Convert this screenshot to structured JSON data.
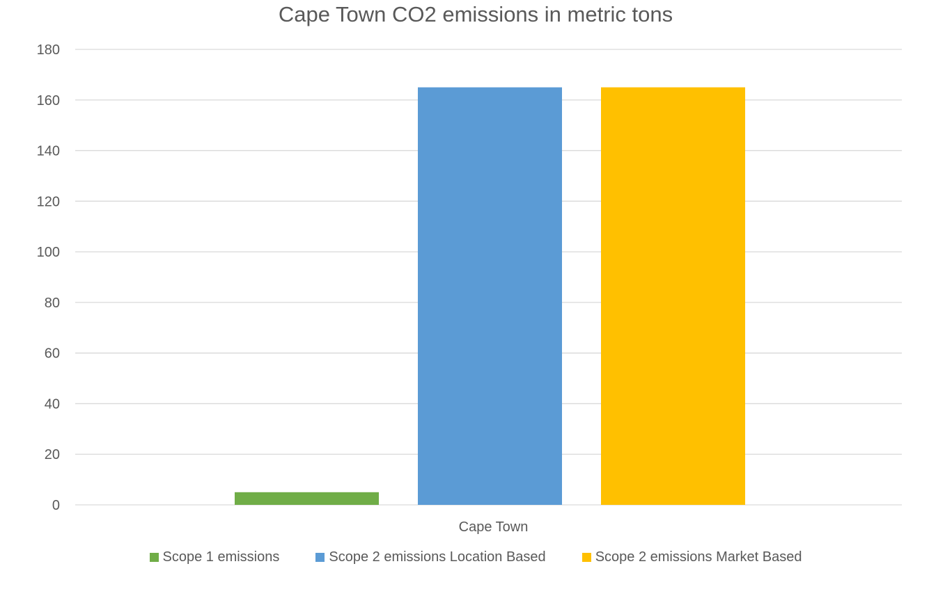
{
  "chart_data": {
    "type": "bar",
    "title": "Cape Town CO2 emissions in metric tons",
    "categories": [
      "Cape Town"
    ],
    "series": [
      {
        "name": "Scope 1 emissions",
        "values": [
          5
        ],
        "color": "#70AD47"
      },
      {
        "name": "Scope 2 emissions Location Based",
        "values": [
          165
        ],
        "color": "#5B9BD5"
      },
      {
        "name": "Scope 2 emissions Market Based",
        "values": [
          165
        ],
        "color": "#FFC000"
      }
    ],
    "xlabel": "",
    "ylabel": "",
    "ylim": [
      0,
      180
    ],
    "yticks": [
      0,
      20,
      40,
      60,
      80,
      100,
      120,
      140,
      160,
      180
    ],
    "grid": true,
    "legend_position": "bottom"
  }
}
